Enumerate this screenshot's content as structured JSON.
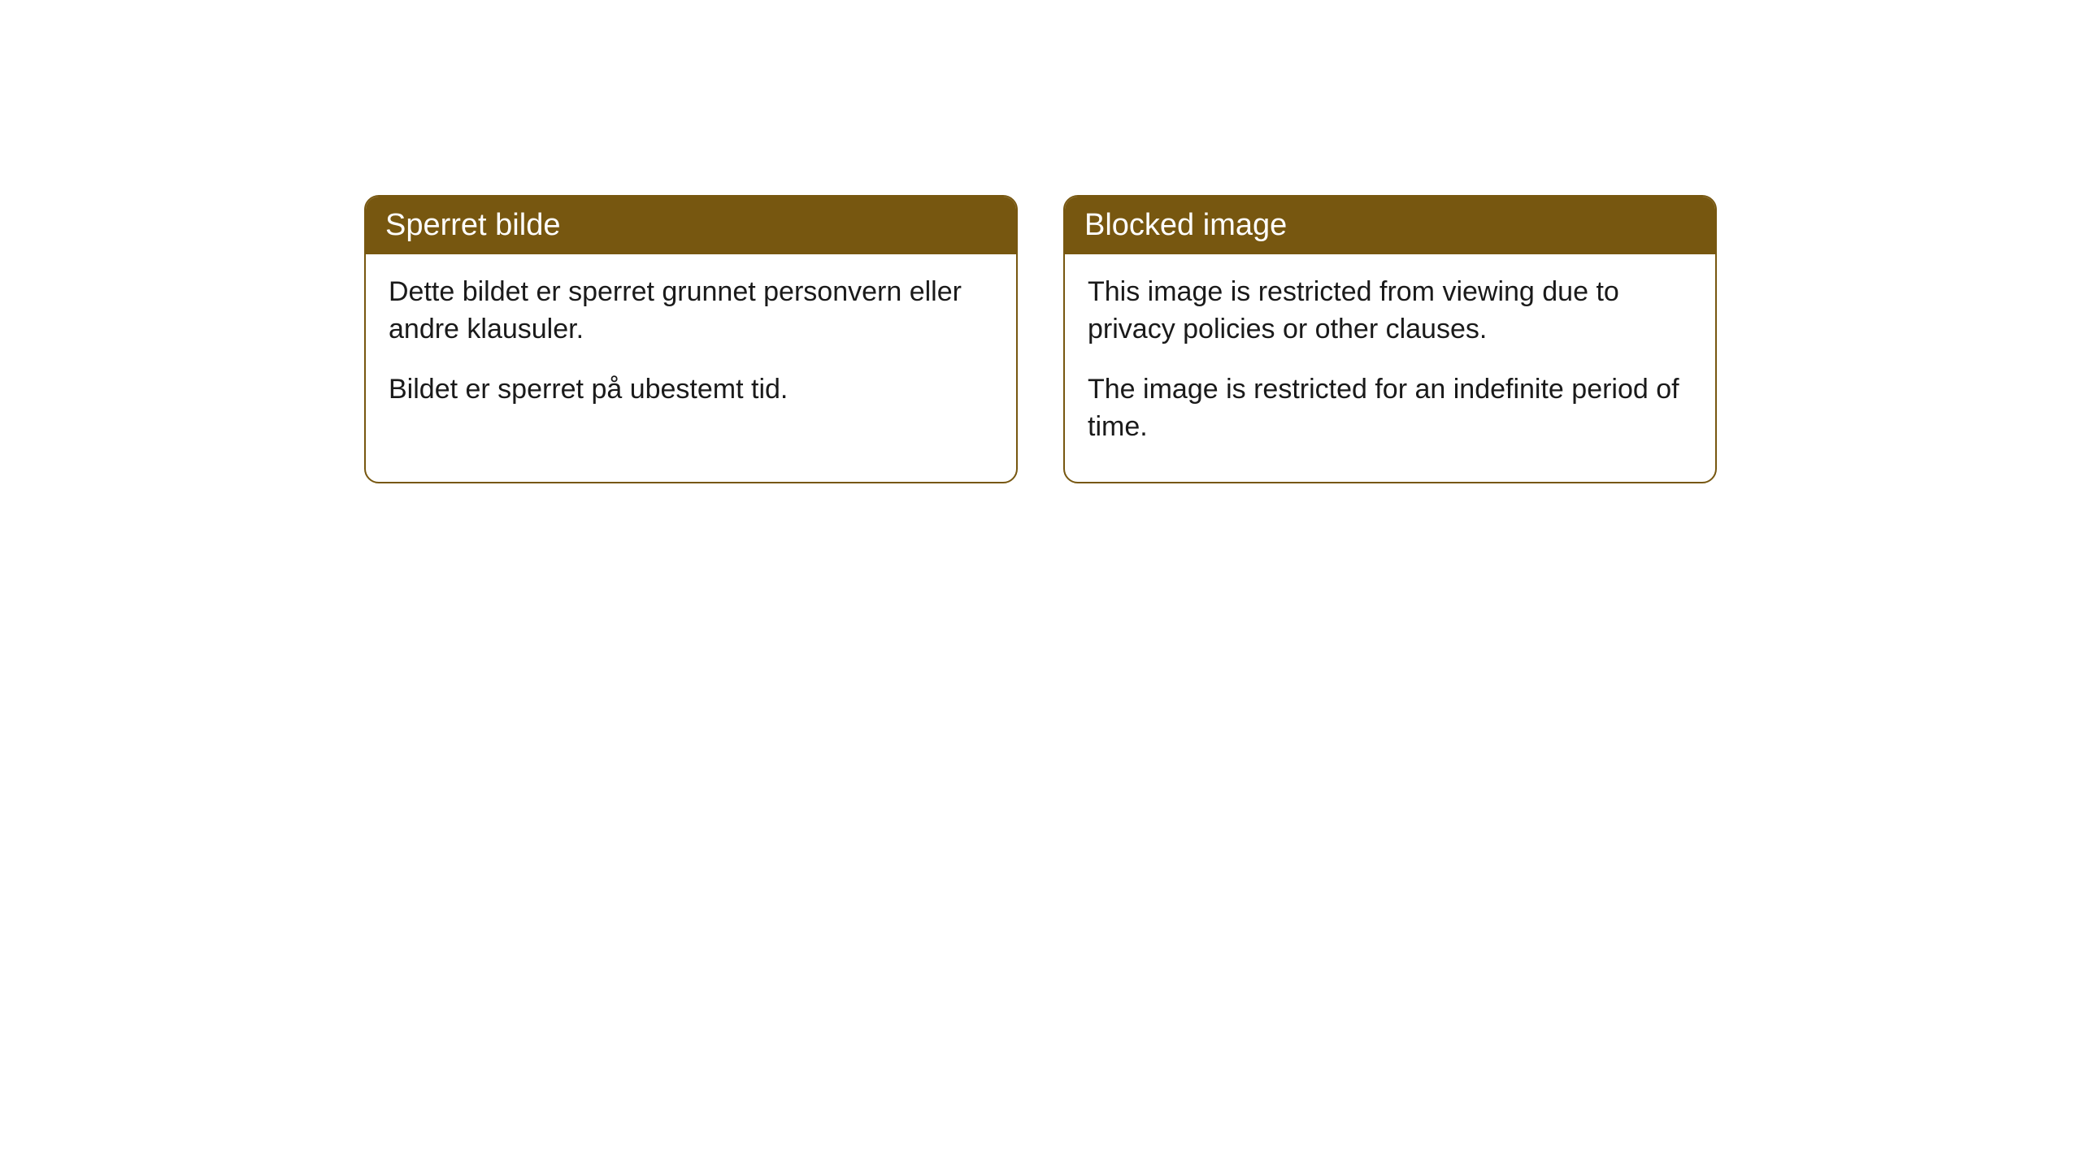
{
  "cards": [
    {
      "header": "Sperret bilde",
      "paragraph1": "Dette bildet er sperret grunnet personvern eller andre klausuler.",
      "paragraph2": "Bildet er sperret på ubestemt tid."
    },
    {
      "header": "Blocked image",
      "paragraph1": "This image is restricted from viewing due to privacy policies or other clauses.",
      "paragraph2": "The image is restricted for an indefinite period of time."
    }
  ],
  "styling": {
    "header_bg_color": "#775710",
    "header_text_color": "#ffffff",
    "border_color": "#775710",
    "body_bg_color": "#ffffff",
    "body_text_color": "#1a1a1a",
    "border_radius": 18,
    "header_fontsize": 38,
    "body_fontsize": 34
  }
}
